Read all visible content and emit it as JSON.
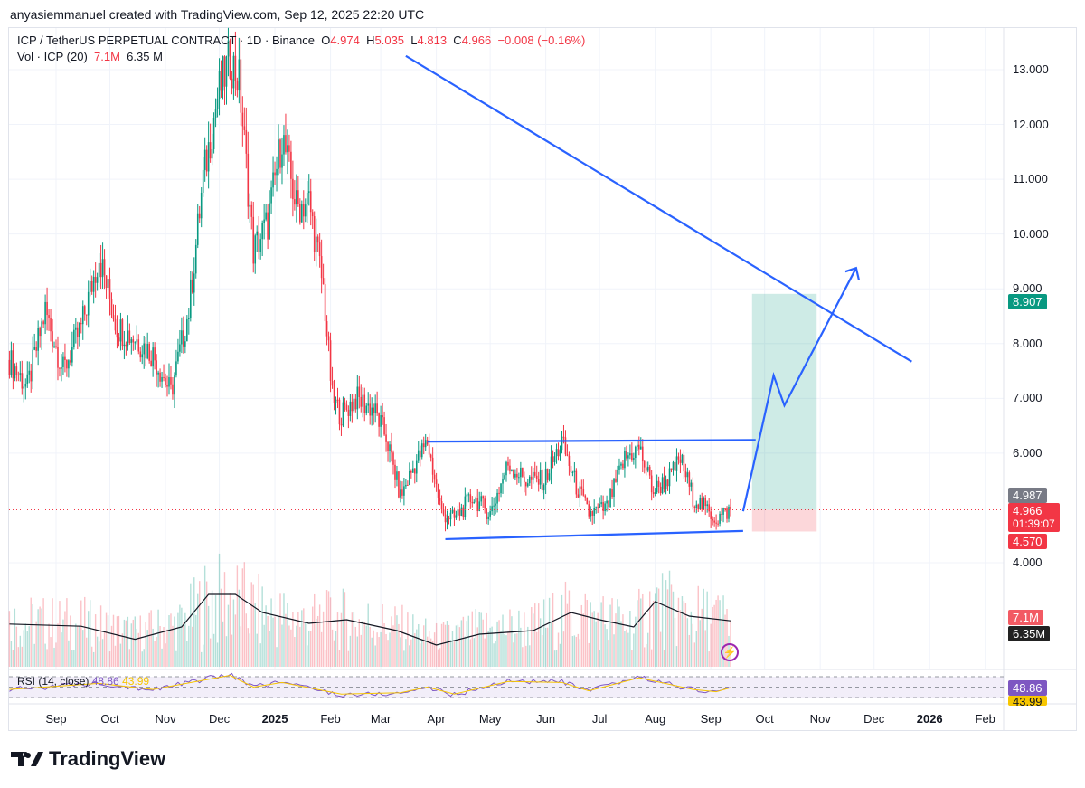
{
  "credit": "anyasiemmanuel created with TradingView.com, Sep 12, 2025 22:20 UTC",
  "legend": {
    "symbol": "ICP / TetherUS PERPETUAL CONTRACT · 1D · Binance",
    "o_label": "O",
    "o": "4.974",
    "h_label": "H",
    "h": "5.035",
    "l_label": "L",
    "l": "4.813",
    "c_label": "C",
    "c": "4.966",
    "change": "−0.008 (−0.16%)",
    "vol_label": "Vol · ICP (20)",
    "vol": "7.1M",
    "vol_ma": "6.35 M"
  },
  "rsi_legend": {
    "label": "RSI (14, close)",
    "rsi": "48.86",
    "ma": "43.99"
  },
  "price_axis": [
    "13.000",
    "12.000",
    "11.000",
    "10.000",
    "9.000",
    "8.000",
    "7.000",
    "6.000",
    "4.000"
  ],
  "price_tags": {
    "high": "4.987",
    "last": "4.966",
    "countdown": "01:39:07",
    "stop": "4.570",
    "target": "8.907",
    "vol": "7.1M",
    "vol_ma": "6.35M",
    "rsi": "48.86",
    "rsi_ma": "43.99"
  },
  "time_axis": [
    {
      "t": "Sep",
      "d": "2024-09-01"
    },
    {
      "t": "Oct",
      "d": "2024-10-01"
    },
    {
      "t": "Nov",
      "d": "2024-11-01"
    },
    {
      "t": "Dec",
      "d": "2024-12-01"
    },
    {
      "t": "2025",
      "d": "2025-01-01",
      "bold": true
    },
    {
      "t": "Feb",
      "d": "2025-02-01"
    },
    {
      "t": "Mar",
      "d": "2025-03-01"
    },
    {
      "t": "Apr",
      "d": "2025-04-01"
    },
    {
      "t": "May",
      "d": "2025-05-01"
    },
    {
      "t": "Jun",
      "d": "2025-06-01"
    },
    {
      "t": "Jul",
      "d": "2025-07-01"
    },
    {
      "t": "Aug",
      "d": "2025-08-01"
    },
    {
      "t": "Sep",
      "d": "2025-09-01"
    },
    {
      "t": "Oct",
      "d": "2025-10-01"
    },
    {
      "t": "Nov",
      "d": "2025-11-01"
    },
    {
      "t": "Dec",
      "d": "2025-12-01"
    },
    {
      "t": "2026",
      "d": "2026-01-01",
      "bold": true
    },
    {
      "t": "Feb",
      "d": "2026-02-01"
    }
  ],
  "logo": "TradingView",
  "colors": {
    "up": "#089981",
    "down": "#f23645",
    "line": "#2962ff",
    "rsi": "#7e57c2",
    "rsi_ma": "#f7c600"
  },
  "chart_data": {
    "type": "candlestick",
    "title": "ICP / TetherUS PERPETUAL CONTRACT 1D",
    "ylim": [
      3.5,
      13.9
    ],
    "close_points": [
      [
        "2024-08-06",
        7.7
      ],
      [
        "2024-08-16",
        7.2
      ],
      [
        "2024-08-26",
        8.6
      ],
      [
        "2024-09-05",
        7.5
      ],
      [
        "2024-09-15",
        8.3
      ],
      [
        "2024-09-25",
        9.6
      ],
      [
        "2024-10-05",
        8.3
      ],
      [
        "2024-10-15",
        8.1
      ],
      [
        "2024-10-25",
        7.8
      ],
      [
        "2024-11-04",
        7.1
      ],
      [
        "2024-11-14",
        8.6
      ],
      [
        "2024-11-22",
        11.0
      ],
      [
        "2024-11-30",
        12.5
      ],
      [
        "2024-12-07",
        13.2
      ],
      [
        "2024-12-12",
        12.8
      ],
      [
        "2024-12-20",
        9.7
      ],
      [
        "2024-12-28",
        10.2
      ],
      [
        "2025-01-05",
        11.8
      ],
      [
        "2025-01-13",
        10.5
      ],
      [
        "2025-01-20",
        10.6
      ],
      [
        "2025-01-28",
        9.0
      ],
      [
        "2025-02-02",
        7.0
      ],
      [
        "2025-02-07",
        6.7
      ],
      [
        "2025-02-15",
        7.0
      ],
      [
        "2025-02-25",
        6.8
      ],
      [
        "2025-03-04",
        6.3
      ],
      [
        "2025-03-12",
        5.2
      ],
      [
        "2025-03-20",
        5.8
      ],
      [
        "2025-03-27",
        6.2
      ],
      [
        "2025-04-04",
        4.9
      ],
      [
        "2025-04-11",
        4.8
      ],
      [
        "2025-04-21",
        5.2
      ],
      [
        "2025-05-01",
        4.9
      ],
      [
        "2025-05-11",
        5.8
      ],
      [
        "2025-05-21",
        5.5
      ],
      [
        "2025-05-31",
        5.5
      ],
      [
        "2025-06-10",
        6.2
      ],
      [
        "2025-06-18",
        5.4
      ],
      [
        "2025-06-25",
        4.9
      ],
      [
        "2025-07-05",
        5.0
      ],
      [
        "2025-07-15",
        5.9
      ],
      [
        "2025-07-23",
        6.1
      ],
      [
        "2025-07-31",
        5.3
      ],
      [
        "2025-08-10",
        5.6
      ],
      [
        "2025-08-15",
        5.9
      ],
      [
        "2025-08-22",
        5.2
      ],
      [
        "2025-09-04",
        4.8
      ],
      [
        "2025-09-12",
        4.966
      ]
    ],
    "volume_ma_millions": [
      [
        "2024-08-06",
        5.9
      ],
      [
        "2024-09-15",
        5.6
      ],
      [
        "2024-10-15",
        3.8
      ],
      [
        "2024-11-10",
        5.5
      ],
      [
        "2024-11-25",
        10.0
      ],
      [
        "2024-12-10",
        10.0
      ],
      [
        "2024-12-25",
        7.5
      ],
      [
        "2025-01-20",
        6.0
      ],
      [
        "2025-02-10",
        6.5
      ],
      [
        "2025-03-10",
        5.0
      ],
      [
        "2025-04-01",
        3.0
      ],
      [
        "2025-04-25",
        4.5
      ],
      [
        "2025-05-25",
        5.0
      ],
      [
        "2025-06-15",
        7.5
      ],
      [
        "2025-07-01",
        6.5
      ],
      [
        "2025-07-20",
        5.5
      ],
      [
        "2025-08-01",
        9.0
      ],
      [
        "2025-08-20",
        7.0
      ],
      [
        "2025-09-12",
        6.35
      ]
    ],
    "rsi_points": [
      [
        "2024-08-06",
        45
      ],
      [
        "2024-09-25",
        58
      ],
      [
        "2024-10-25",
        45
      ],
      [
        "2024-12-07",
        75
      ],
      [
        "2024-12-20",
        50
      ],
      [
        "2025-01-05",
        60
      ],
      [
        "2025-02-07",
        35
      ],
      [
        "2025-03-12",
        38
      ],
      [
        "2025-03-27",
        50
      ],
      [
        "2025-04-11",
        35
      ],
      [
        "2025-05-11",
        62
      ],
      [
        "2025-06-10",
        60
      ],
      [
        "2025-06-25",
        42
      ],
      [
        "2025-07-23",
        70
      ],
      [
        "2025-08-22",
        45
      ],
      [
        "2025-09-04",
        40
      ],
      [
        "2025-09-12",
        48.86
      ]
    ],
    "drawings": {
      "trendline": [
        [
          "2025-03-15",
          13.25
        ],
        [
          "2025-12-22",
          7.67
        ]
      ],
      "channel_top": [
        [
          "2025-03-27",
          6.21
        ],
        [
          "2025-09-26",
          6.24
        ]
      ],
      "channel_bottom": [
        [
          "2025-04-06",
          4.43
        ],
        [
          "2025-09-19",
          4.58
        ]
      ],
      "projection": [
        [
          "2025-09-19",
          4.94
        ],
        [
          "2025-10-06",
          7.42
        ],
        [
          "2025-10-12",
          6.87
        ],
        [
          "2025-11-21",
          9.38
        ]
      ],
      "long_position": {
        "from": "2025-09-24",
        "to": "2025-10-30",
        "entry": 4.966,
        "target": 8.907,
        "stop": 4.57
      }
    }
  }
}
